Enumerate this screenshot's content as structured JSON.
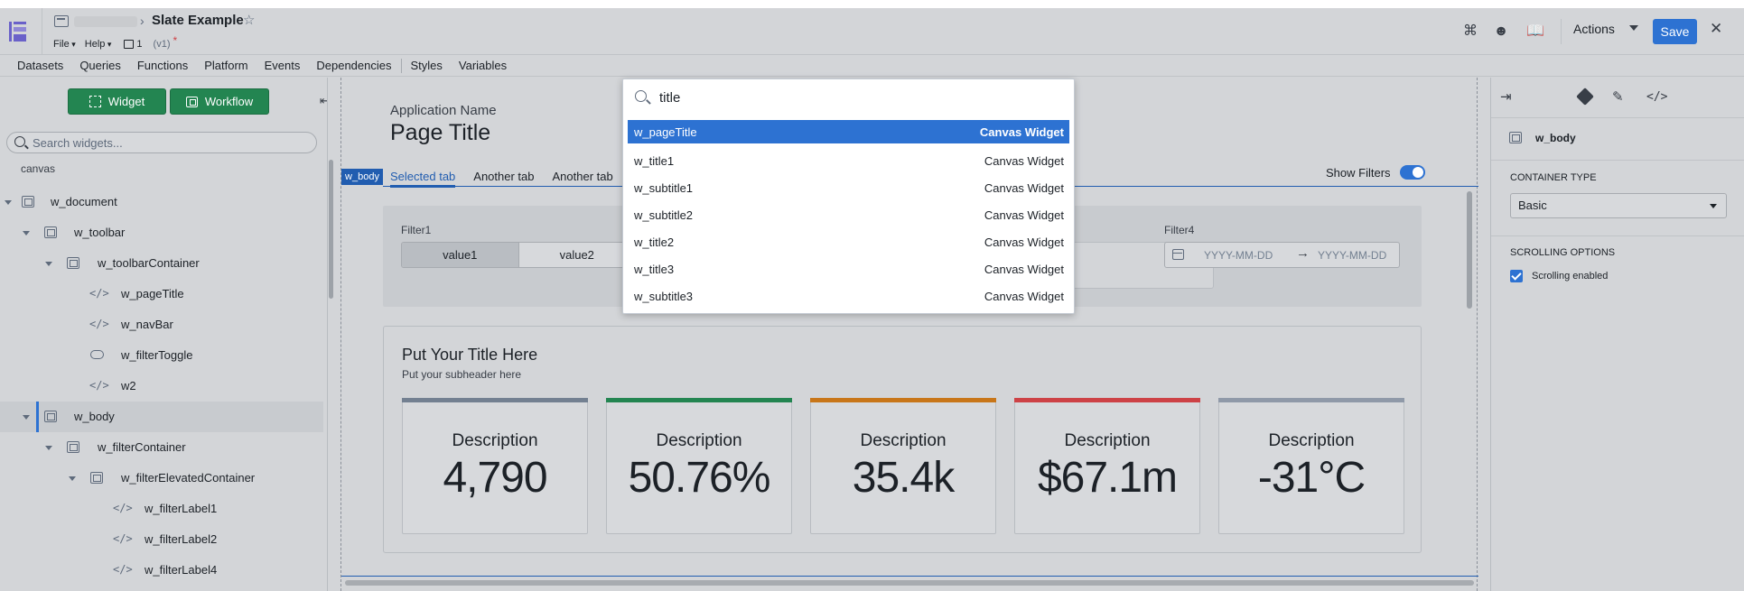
{
  "header": {
    "app_title": "Slate Example",
    "menus": [
      "File",
      "Help"
    ],
    "page_count": "1",
    "version": "(v1)",
    "dirty_marker": "*",
    "actions_label": "Actions",
    "save_label": "Save"
  },
  "nav": [
    "Datasets",
    "Queries",
    "Functions",
    "Platform",
    "Events",
    "Dependencies",
    "Styles",
    "Variables"
  ],
  "sidebar": {
    "widget_button": "Widget",
    "workflow_button": "Workflow",
    "search_placeholder": "Search widgets...",
    "canvas_label": "canvas",
    "tree": [
      {
        "label": "w_document",
        "type": "container",
        "depth": 0,
        "expanded": true
      },
      {
        "label": "w_toolbar",
        "type": "container",
        "depth": 1,
        "expanded": true
      },
      {
        "label": "w_toolbarContainer",
        "type": "container",
        "depth": 2,
        "expanded": true
      },
      {
        "label": "w_pageTitle",
        "type": "code",
        "depth": 3
      },
      {
        "label": "w_navBar",
        "type": "code",
        "depth": 3
      },
      {
        "label": "w_filterToggle",
        "type": "toggle",
        "depth": 3
      },
      {
        "label": "w2",
        "type": "code",
        "depth": 3
      },
      {
        "label": "w_body",
        "type": "container",
        "depth": 1,
        "expanded": true,
        "selected": true
      },
      {
        "label": "w_filterContainer",
        "type": "container",
        "depth": 2,
        "expanded": true
      },
      {
        "label": "w_filterElevatedContainer",
        "type": "container",
        "depth": 3,
        "expanded": true
      },
      {
        "label": "w_filterLabel1",
        "type": "code",
        "depth": 4
      },
      {
        "label": "w_filterLabel2",
        "type": "code",
        "depth": 4
      },
      {
        "label": "w_filterLabel4",
        "type": "code",
        "depth": 4
      }
    ]
  },
  "canvas": {
    "app_name": "Application Name",
    "page_title": "Page Title",
    "body_tag": "w_body",
    "tabs": [
      "Selected tab",
      "Another tab",
      "Another tab"
    ],
    "show_filters": "Show Filters",
    "show_filters_on": true,
    "filter1_label": "Filter1",
    "filter1_options": [
      "value1",
      "value2"
    ],
    "filter4_label": "Filter4",
    "date_start_placeholder": "YYYY-MM-DD",
    "date_end_placeholder": "YYYY-MM-DD",
    "card_title": "Put Your Title Here",
    "card_subtitle": "Put your subheader here",
    "metrics": [
      {
        "desc": "Description",
        "value": "4,790",
        "color": "#738091"
      },
      {
        "desc": "Description",
        "value": "50.76%",
        "color": "#238551"
      },
      {
        "desc": "Description",
        "value": "35.4k",
        "color": "#c87619"
      },
      {
        "desc": "Description",
        "value": "$67.1m",
        "color": "#cd4246"
      },
      {
        "desc": "Description",
        "value": "-31°C",
        "color": "#8f99a8"
      }
    ]
  },
  "right_panel": {
    "widget_name": "w_body",
    "container_type_label": "CONTAINER TYPE",
    "container_type_value": "Basic",
    "scrolling_label": "SCROLLING OPTIONS",
    "scrolling_enabled_label": "Scrolling enabled",
    "scrolling_enabled": true
  },
  "omnibar": {
    "query": "title",
    "results": [
      {
        "name": "w_pageTitle",
        "type": "Canvas Widget",
        "active": true
      },
      {
        "name": "w_title1",
        "type": "Canvas Widget"
      },
      {
        "name": "w_subtitle1",
        "type": "Canvas Widget"
      },
      {
        "name": "w_subtitle2",
        "type": "Canvas Widget"
      },
      {
        "name": "w_title2",
        "type": "Canvas Widget"
      },
      {
        "name": "w_title3",
        "type": "Canvas Widget"
      },
      {
        "name": "w_subtitle3",
        "type": "Canvas Widget"
      }
    ]
  },
  "icons": {
    "logo": "slate-logo-icon",
    "shortcut": "command-icon",
    "users": "users-icon",
    "docs": "book-icon",
    "close": "close-icon"
  }
}
